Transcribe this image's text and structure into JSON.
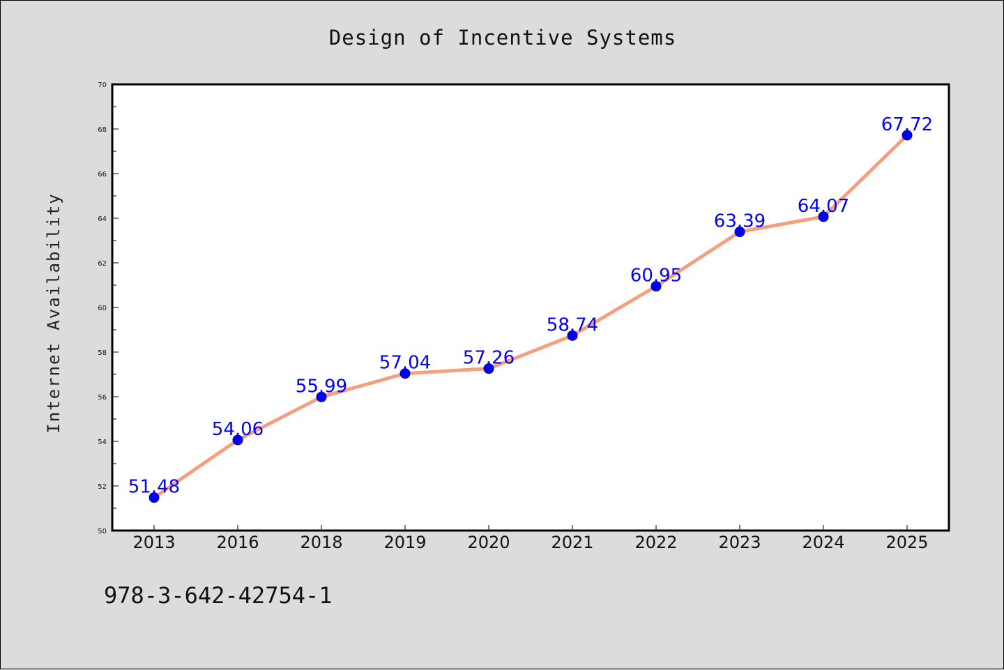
{
  "colors": {
    "background": "#dcdcdc",
    "plot_background": "#ffffff",
    "line": "#f4a07f",
    "marker": "#0000ff",
    "data_label": "#0000ff",
    "axis": "#000000"
  },
  "footer": {
    "isbn": "978-3-642-42754-1"
  },
  "chart_data": {
    "type": "line",
    "title": "Design of Incentive Systems",
    "xlabel": "",
    "ylabel": "Internet Availability",
    "categories": [
      "2013",
      "2016",
      "2018",
      "2019",
      "2020",
      "2021",
      "2022",
      "2023",
      "2024",
      "2025"
    ],
    "values": [
      51.48,
      54.06,
      55.99,
      57.04,
      57.26,
      58.74,
      60.95,
      63.39,
      64.07,
      67.72
    ],
    "data_labels": [
      "51.48",
      "54.06",
      "55.99",
      "57.04",
      "57.26",
      "58.74",
      "60.95",
      "63.39",
      "64.07",
      "67.72"
    ],
    "ylim": [
      50,
      70
    ],
    "yticks": [
      "50",
      "52",
      "54",
      "56",
      "58",
      "60",
      "62",
      "64",
      "66",
      "68",
      "70"
    ],
    "grid": false,
    "legend": "none"
  }
}
